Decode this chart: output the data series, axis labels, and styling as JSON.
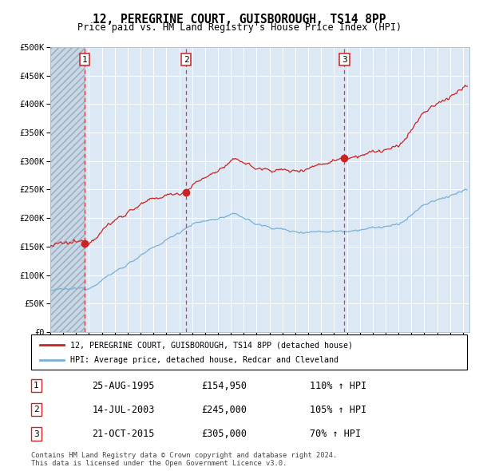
{
  "title": "12, PEREGRINE COURT, GUISBOROUGH, TS14 8PP",
  "subtitle": "Price paid vs. HM Land Registry's House Price Index (HPI)",
  "hpi_color": "#7BAFD4",
  "price_color": "#CC2222",
  "plot_bg": "#DCE9F5",
  "hatch_color": "#B8C8D8",
  "ylim": [
    0,
    500000
  ],
  "yticks": [
    0,
    50000,
    100000,
    150000,
    200000,
    250000,
    300000,
    350000,
    400000,
    450000,
    500000
  ],
  "ytick_labels": [
    "£0",
    "£50K",
    "£100K",
    "£150K",
    "£200K",
    "£250K",
    "£300K",
    "£350K",
    "£400K",
    "£450K",
    "£500K"
  ],
  "sale1_price": 154950,
  "sale2_price": 245000,
  "sale3_price": 305000,
  "sale1_x": 1995.646,
  "sale2_x": 2003.537,
  "sale3_x": 2015.804,
  "legend_line1": "12, PEREGRINE COURT, GUISBOROUGH, TS14 8PP (detached house)",
  "legend_line2": "HPI: Average price, detached house, Redcar and Cleveland",
  "table_rows": [
    [
      "1",
      "25-AUG-1995",
      "£154,950",
      "110% ↑ HPI"
    ],
    [
      "2",
      "14-JUL-2003",
      "£245,000",
      "105% ↑ HPI"
    ],
    [
      "3",
      "21-OCT-2015",
      "£305,000",
      "70% ↑ HPI"
    ]
  ],
  "footer": "Contains HM Land Registry data © Crown copyright and database right 2024.\nThis data is licensed under the Open Government Licence v3.0.",
  "xstart": 1993.0,
  "xend": 2025.5
}
